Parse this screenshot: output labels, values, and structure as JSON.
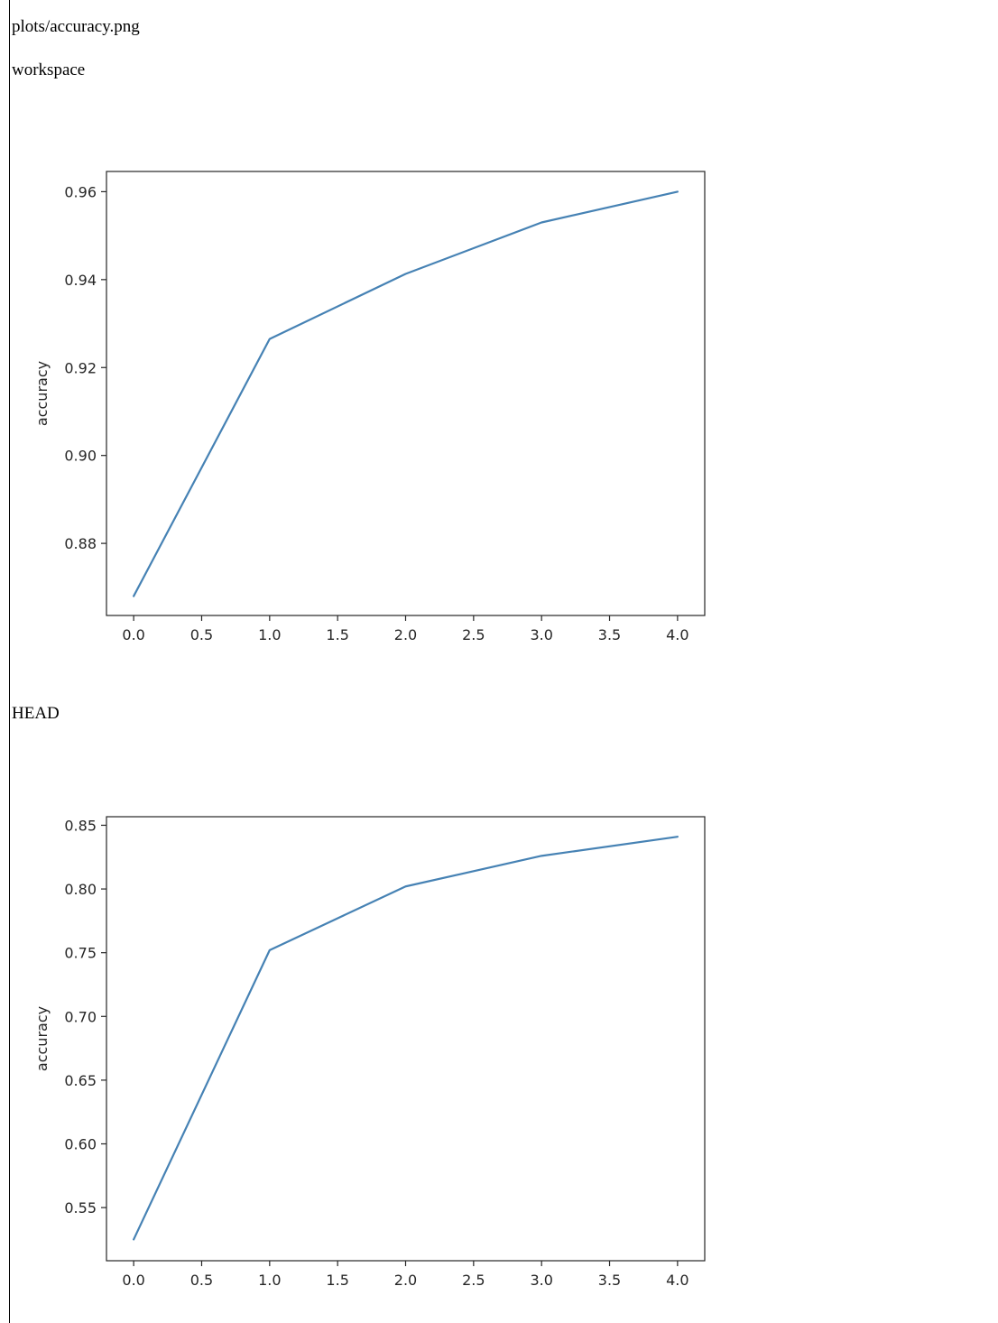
{
  "header": {
    "file_path": "plots/accuracy.png"
  },
  "sections": [
    {
      "label": "workspace"
    },
    {
      "label": "HEAD"
    }
  ],
  "colors": {
    "line": "#4682b4",
    "axes": "#262626"
  },
  "chart_data": [
    {
      "type": "line",
      "title": "",
      "xlabel": "",
      "ylabel": "accuracy",
      "x": [
        0,
        1,
        2,
        3,
        4
      ],
      "series": [
        {
          "values": [
            0.868,
            0.9265,
            0.9413,
            0.953,
            0.96
          ]
        }
      ],
      "xlim": [
        -0.2,
        4.2
      ],
      "ylim": [
        0.8636,
        0.9646
      ],
      "xticks": [
        0,
        0.5,
        1,
        1.5,
        2,
        2.5,
        3,
        3.5,
        4
      ],
      "xtick_labels": [
        "0.0",
        "0.5",
        "1.0",
        "1.5",
        "2.0",
        "2.5",
        "3.0",
        "3.5",
        "4.0"
      ],
      "yticks": [
        0.88,
        0.9,
        0.92,
        0.94,
        0.96
      ],
      "ytick_labels": [
        "0.88",
        "0.90",
        "0.92",
        "0.94",
        "0.96"
      ],
      "grid": false,
      "legend": "none"
    },
    {
      "type": "line",
      "title": "",
      "xlabel": "",
      "ylabel": "accuracy",
      "x": [
        0,
        1,
        2,
        3,
        4
      ],
      "series": [
        {
          "values": [
            0.525,
            0.752,
            0.802,
            0.826,
            0.841
          ]
        }
      ],
      "xlim": [
        -0.2,
        4.2
      ],
      "ylim": [
        0.5083,
        0.8567
      ],
      "xticks": [
        0,
        0.5,
        1,
        1.5,
        2,
        2.5,
        3,
        3.5,
        4
      ],
      "xtick_labels": [
        "0.0",
        "0.5",
        "1.0",
        "1.5",
        "2.0",
        "2.5",
        "3.0",
        "3.5",
        "4.0"
      ],
      "yticks": [
        0.55,
        0.6,
        0.65,
        0.7,
        0.75,
        0.8,
        0.85
      ],
      "ytick_labels": [
        "0.55",
        "0.60",
        "0.65",
        "0.70",
        "0.75",
        "0.80",
        "0.85"
      ],
      "grid": false,
      "legend": "none"
    }
  ]
}
